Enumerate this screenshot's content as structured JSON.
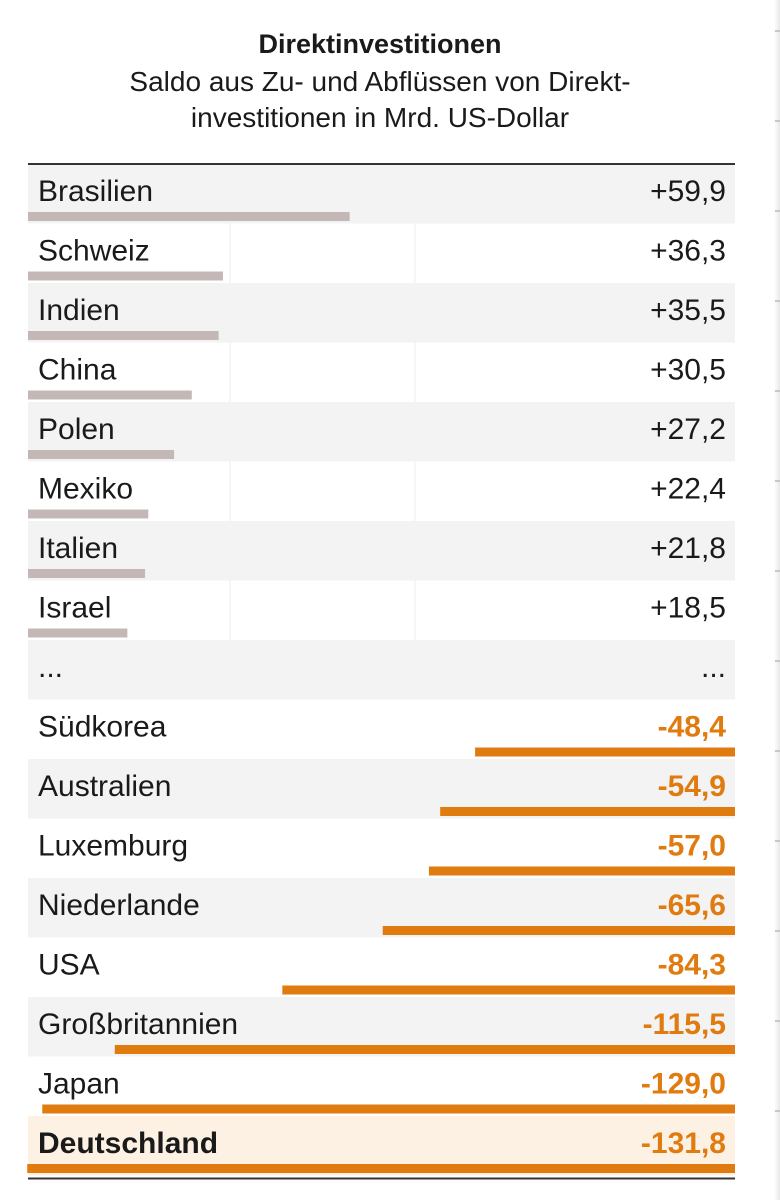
{
  "chart_data": {
    "type": "bar",
    "title": "Direktinvestitionen",
    "subtitle_line1": "Saldo aus Zu- und Abflüssen von Direkt-",
    "subtitle_line2": "investitionen in Mrd. US-Dollar",
    "rows": [
      {
        "label": "Brasilien",
        "value": 59.9,
        "display": "+59,9"
      },
      {
        "label": "Schweiz",
        "value": 36.3,
        "display": "+36,3"
      },
      {
        "label": "Indien",
        "value": 35.5,
        "display": "+35,5"
      },
      {
        "label": "China",
        "value": 30.5,
        "display": "+30,5"
      },
      {
        "label": "Polen",
        "value": 27.2,
        "display": "+27,2"
      },
      {
        "label": "Mexiko",
        "value": 22.4,
        "display": "+22,4"
      },
      {
        "label": "Italien",
        "value": 21.8,
        "display": "+21,8"
      },
      {
        "label": "Israel",
        "value": 18.5,
        "display": "+18,5"
      },
      {
        "label": "...",
        "value": null,
        "display": "...",
        "ellipsis": true
      },
      {
        "label": "Südkorea",
        "value": -48.4,
        "display": "-48,4"
      },
      {
        "label": "Australien",
        "value": -54.9,
        "display": "-54,9"
      },
      {
        "label": "Luxemburg",
        "value": -57.0,
        "display": "-57,0"
      },
      {
        "label": "Niederlande",
        "value": -65.6,
        "display": "-65,6"
      },
      {
        "label": "USA",
        "value": -84.3,
        "display": "-84,3"
      },
      {
        "label": "Großbritannien",
        "value": -115.5,
        "display": "-115,5"
      },
      {
        "label": "Japan",
        "value": -129.0,
        "display": "-129,0"
      },
      {
        "label": "Deutschland",
        "value": -131.8,
        "display": "-131,8",
        "highlight": true
      }
    ],
    "colors": {
      "positive_bar": "#c4b8b6",
      "negative_bar": "#e07b10",
      "negative_text": "#e07b10",
      "stripe": "#f3f3f3",
      "highlight_bg": "#fdf1e3",
      "rule": "#333333"
    }
  }
}
